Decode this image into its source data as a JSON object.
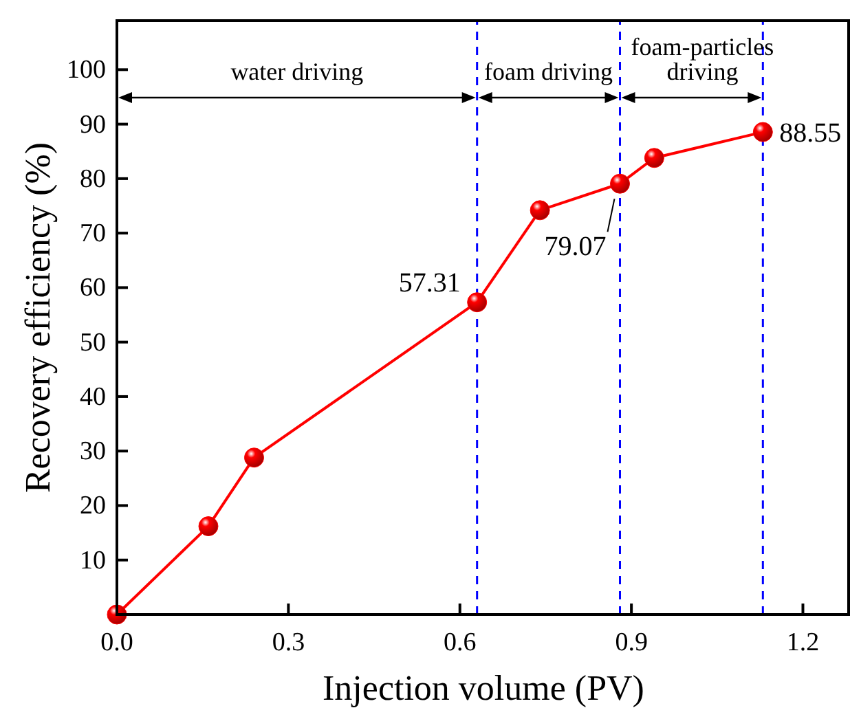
{
  "chart_data": {
    "type": "line",
    "xlabel": "Injection volume (PV)",
    "ylabel": "Recovery efficiency (%)",
    "x": [
      0,
      0.16,
      0.24,
      0.63,
      0.74,
      0.88,
      0.94,
      1.13
    ],
    "series": [
      {
        "color": "#ff0000",
        "values": [
          0,
          16.2,
          28.8,
          57.31,
          74.2,
          79.07,
          83.8,
          88.55
        ],
        "value_labels": [
          null,
          null,
          null,
          "57.31",
          null,
          "79.07",
          null,
          "88.55"
        ]
      }
    ],
    "xlim": [
      0,
      1.28
    ],
    "xticks": [
      {
        "value": 0,
        "label": "0.0"
      },
      0.3,
      0.6,
      0.9,
      1.2
    ],
    "ylim": [
      0,
      109
    ],
    "yticks": [
      10,
      20,
      30,
      40,
      50,
      60,
      70,
      80,
      90,
      100
    ],
    "ref_lines": [
      {
        "axis": "x",
        "value": 0.63,
        "color": "#0000ff",
        "line_style": "dashed"
      },
      {
        "axis": "x",
        "value": 0.88,
        "color": "#0000ff",
        "line_style": "dashed"
      },
      {
        "axis": "x",
        "value": 1.13,
        "color": "#0000ff",
        "line_style": "dashed"
      }
    ],
    "annotations": [
      "water driving",
      "foam driving",
      "foam-particles\ndriving"
    ],
    "marker": "circle",
    "line_style": "solid",
    "grid": false
  }
}
